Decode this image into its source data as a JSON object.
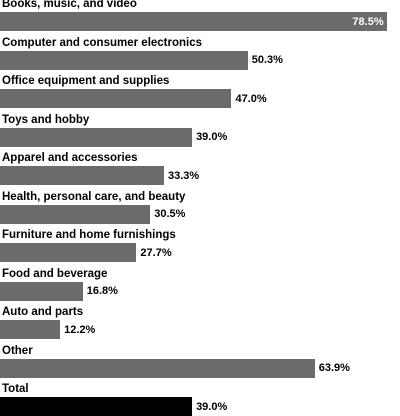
{
  "colors": {
    "bar": "#6b6b6b",
    "total_bar": "#000000",
    "inside_text": "#ffffff"
  },
  "chart_data": {
    "type": "bar",
    "orientation": "horizontal",
    "categories": [
      "Books, music, and video",
      "Computer and consumer electronics",
      "Office equipment and supplies",
      "Toys and hobby",
      "Apparel and accessories",
      "Health, personal care, and beauty",
      "Furniture and home furnishings",
      "Food and beverage",
      "Auto and parts",
      "Other",
      "Total"
    ],
    "values": [
      78.5,
      50.3,
      47.0,
      39.0,
      33.3,
      30.5,
      27.7,
      16.8,
      12.2,
      63.9,
      39.0
    ],
    "value_labels": [
      "78.5%",
      "50.3%",
      "47.0%",
      "39.0%",
      "33.3%",
      "30.5%",
      "27.7%",
      "16.8%",
      "12.2%",
      "63.9%",
      "39.0%"
    ],
    "xlim": [
      0,
      80
    ],
    "grid": false,
    "legend": "none"
  }
}
